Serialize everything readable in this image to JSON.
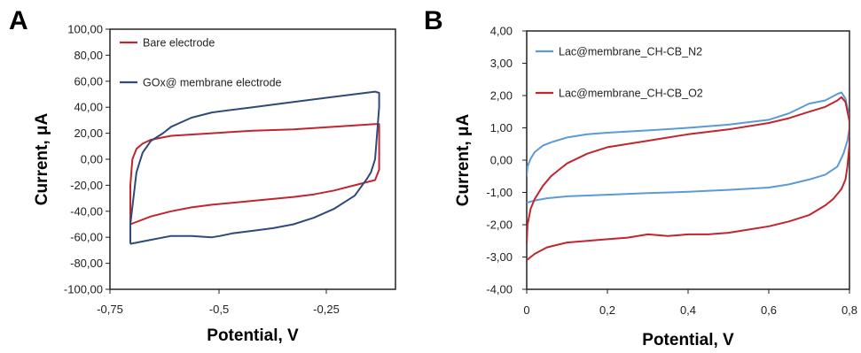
{
  "figure": {
    "panel_a_label": "A",
    "panel_b_label": "B"
  },
  "chart_data": [
    {
      "type": "line",
      "panel": "A",
      "title": "",
      "xlabel": "Potential, V",
      "ylabel": "Current, μA",
      "xlim": [
        -0.75,
        -0.05
      ],
      "ylim": [
        -100,
        100
      ],
      "xticks": [
        -0.75,
        -0.5,
        -0.25
      ],
      "xtick_labels": [
        "-0,75",
        "-0,5",
        "-0,25"
      ],
      "yticks": [
        -100,
        -80,
        -60,
        -40,
        -20,
        0,
        20,
        40,
        60,
        80,
        100
      ],
      "ytick_labels": [
        "-100,00",
        "-80,00",
        "-60,00",
        "-40,00",
        "-20,00",
        "0,00",
        "20,00",
        "40,00",
        "60,00",
        "80,00",
        "100,00"
      ],
      "grid": false,
      "legend_position": "top-left",
      "series": [
        {
          "name": "Bare electrode",
          "color": "#c0262d",
          "points": [
            [
              -0.7,
              -50
            ],
            [
              -0.7,
              -20
            ],
            [
              -0.695,
              0
            ],
            [
              -0.685,
              8
            ],
            [
              -0.67,
              12
            ],
            [
              -0.65,
              15
            ],
            [
              -0.6,
              18
            ],
            [
              -0.5,
              20
            ],
            [
              -0.4,
              22
            ],
            [
              -0.3,
              23
            ],
            [
              -0.25,
              24
            ],
            [
              -0.2,
              25
            ],
            [
              -0.15,
              26
            ],
            [
              -0.1,
              27
            ],
            [
              -0.09,
              27
            ],
            [
              -0.09,
              -8
            ],
            [
              -0.1,
              -16
            ],
            [
              -0.15,
              -20
            ],
            [
              -0.2,
              -24
            ],
            [
              -0.25,
              -27
            ],
            [
              -0.3,
              -29
            ],
            [
              -0.4,
              -32
            ],
            [
              -0.5,
              -35
            ],
            [
              -0.55,
              -37
            ],
            [
              -0.6,
              -40
            ],
            [
              -0.65,
              -44
            ],
            [
              -0.7,
              -50
            ]
          ]
        },
        {
          "name": "GOx@ membrane electrode",
          "color": "#2e4a7a",
          "points": [
            [
              -0.7,
              -65
            ],
            [
              -0.7,
              -50
            ],
            [
              -0.685,
              -10
            ],
            [
              -0.67,
              5
            ],
            [
              -0.65,
              14
            ],
            [
              -0.62,
              20
            ],
            [
              -0.6,
              25
            ],
            [
              -0.55,
              32
            ],
            [
              -0.5,
              36
            ],
            [
              -0.4,
              40
            ],
            [
              -0.3,
              44
            ],
            [
              -0.2,
              48
            ],
            [
              -0.15,
              50
            ],
            [
              -0.1,
              52
            ],
            [
              -0.09,
              51
            ],
            [
              -0.09,
              40
            ],
            [
              -0.095,
              20
            ],
            [
              -0.1,
              0
            ],
            [
              -0.11,
              -10
            ],
            [
              -0.12,
              -15
            ],
            [
              -0.15,
              -28
            ],
            [
              -0.2,
              -38
            ],
            [
              -0.25,
              -45
            ],
            [
              -0.3,
              -50
            ],
            [
              -0.35,
              -53
            ],
            [
              -0.4,
              -55
            ],
            [
              -0.45,
              -57
            ],
            [
              -0.48,
              -59
            ],
            [
              -0.5,
              -60
            ],
            [
              -0.55,
              -59
            ],
            [
              -0.6,
              -59
            ],
            [
              -0.65,
              -62
            ],
            [
              -0.7,
              -65
            ]
          ]
        }
      ]
    },
    {
      "type": "line",
      "panel": "B",
      "title": "",
      "xlabel": "Potential, V",
      "ylabel": "Current, μA",
      "xlim": [
        0,
        0.8
      ],
      "ylim": [
        -4,
        4
      ],
      "xticks": [
        0,
        0.2,
        0.4,
        0.6,
        0.8
      ],
      "xtick_labels": [
        "0",
        "0,2",
        "0,4",
        "0,6",
        "0,8"
      ],
      "yticks": [
        -4,
        -3,
        -2,
        -1,
        0,
        1,
        2,
        3,
        4
      ],
      "ytick_labels": [
        "-4,00",
        "-3,00",
        "-2,00",
        "-1,00",
        "0,00",
        "1,00",
        "2,00",
        "3,00",
        "4,00"
      ],
      "grid": false,
      "legend_position": "top-left",
      "series": [
        {
          "name": "Lac@membrane_CH-CB_N2",
          "color": "#5b9bd5",
          "points": [
            [
              0,
              -0.5
            ],
            [
              0.002,
              -0.2
            ],
            [
              0.01,
              0.05
            ],
            [
              0.02,
              0.25
            ],
            [
              0.04,
              0.45
            ],
            [
              0.06,
              0.55
            ],
            [
              0.1,
              0.7
            ],
            [
              0.15,
              0.8
            ],
            [
              0.2,
              0.85
            ],
            [
              0.3,
              0.92
            ],
            [
              0.4,
              1.0
            ],
            [
              0.5,
              1.1
            ],
            [
              0.6,
              1.25
            ],
            [
              0.65,
              1.45
            ],
            [
              0.7,
              1.75
            ],
            [
              0.74,
              1.85
            ],
            [
              0.77,
              2.05
            ],
            [
              0.78,
              2.1
            ],
            [
              0.79,
              1.9
            ],
            [
              0.8,
              1.3
            ],
            [
              0.8,
              1.0
            ],
            [
              0.795,
              0.6
            ],
            [
              0.785,
              0.2
            ],
            [
              0.77,
              -0.2
            ],
            [
              0.74,
              -0.45
            ],
            [
              0.7,
              -0.6
            ],
            [
              0.65,
              -0.75
            ],
            [
              0.6,
              -0.85
            ],
            [
              0.5,
              -0.92
            ],
            [
              0.4,
              -0.98
            ],
            [
              0.3,
              -1.02
            ],
            [
              0.2,
              -1.07
            ],
            [
              0.1,
              -1.12
            ],
            [
              0.05,
              -1.18
            ],
            [
              0.02,
              -1.25
            ],
            [
              0,
              -1.32
            ]
          ]
        },
        {
          "name": "Lac@membrane_CH-CB_O2",
          "color": "#c0262d",
          "points": [
            [
              0,
              -2.6
            ],
            [
              0.002,
              -2.0
            ],
            [
              0.01,
              -1.5
            ],
            [
              0.02,
              -1.2
            ],
            [
              0.04,
              -0.8
            ],
            [
              0.06,
              -0.5
            ],
            [
              0.08,
              -0.3
            ],
            [
              0.1,
              -0.1
            ],
            [
              0.15,
              0.2
            ],
            [
              0.2,
              0.4
            ],
            [
              0.3,
              0.6
            ],
            [
              0.4,
              0.8
            ],
            [
              0.5,
              0.95
            ],
            [
              0.6,
              1.15
            ],
            [
              0.65,
              1.3
            ],
            [
              0.7,
              1.5
            ],
            [
              0.74,
              1.65
            ],
            [
              0.77,
              1.85
            ],
            [
              0.78,
              1.95
            ],
            [
              0.79,
              1.8
            ],
            [
              0.8,
              1.2
            ],
            [
              0.8,
              0.5
            ],
            [
              0.795,
              -0.2
            ],
            [
              0.79,
              -0.6
            ],
            [
              0.78,
              -0.9
            ],
            [
              0.76,
              -1.2
            ],
            [
              0.74,
              -1.4
            ],
            [
              0.7,
              -1.7
            ],
            [
              0.65,
              -1.9
            ],
            [
              0.6,
              -2.05
            ],
            [
              0.55,
              -2.15
            ],
            [
              0.5,
              -2.25
            ],
            [
              0.45,
              -2.3
            ],
            [
              0.4,
              -2.3
            ],
            [
              0.35,
              -2.35
            ],
            [
              0.3,
              -2.3
            ],
            [
              0.25,
              -2.4
            ],
            [
              0.2,
              -2.45
            ],
            [
              0.15,
              -2.5
            ],
            [
              0.1,
              -2.55
            ],
            [
              0.05,
              -2.7
            ],
            [
              0.02,
              -2.9
            ],
            [
              0,
              -3.1
            ]
          ]
        }
      ]
    }
  ]
}
